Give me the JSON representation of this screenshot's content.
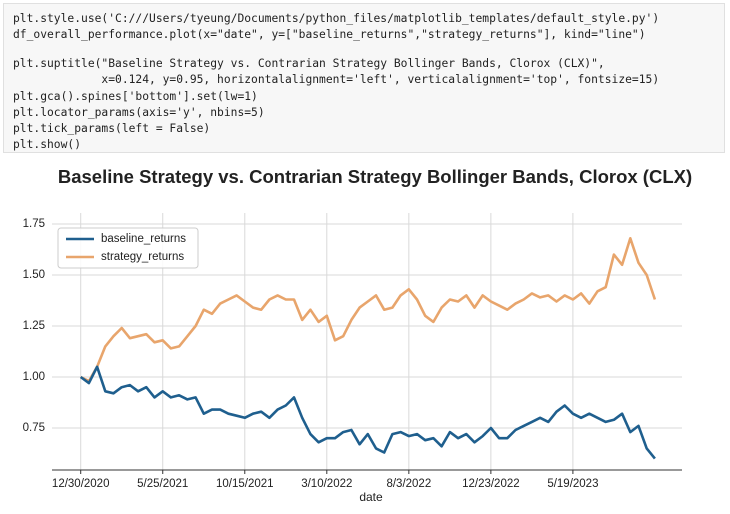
{
  "code": {
    "lines": [
      "plt.style.use('C:///Users/tyeung/Documents/python_files/matplotlib_templates/default_style.py')",
      "df_overall_performance.plot(x=\"date\", y=[\"baseline_returns\",\"strategy_returns\"], kind=\"line\")",
      "plt.suptitle(\"Baseline Strategy vs. Contrarian Strategy Bollinger Bands, Clorox (CLX)\",",
      "             x=0.124, y=0.95, horizontalalignment='left', verticalalignment='top', fontsize=15)",
      "plt.gca().spines['bottom'].set(lw=1)",
      "plt.locator_params(axis='y', nbins=5)",
      "plt.tick_params(left = False)",
      "plt.show()"
    ]
  },
  "chart_data": {
    "type": "line",
    "title": "Baseline Strategy vs. Contrarian Strategy Bollinger Bands, Clorox (CLX)",
    "x_label": "date",
    "x": [
      0,
      10,
      20,
      30,
      40,
      50,
      60,
      70,
      80,
      90,
      100,
      110,
      120,
      130,
      140,
      150,
      160,
      170,
      180,
      190,
      200,
      210,
      220,
      230,
      240,
      250,
      260,
      270,
      280,
      290,
      300,
      310,
      320,
      330,
      340,
      350,
      360,
      370,
      380,
      390,
      400,
      410,
      420,
      430,
      440,
      450,
      460,
      470,
      480,
      490,
      500,
      510,
      520,
      530,
      540,
      550,
      560,
      570,
      580,
      590,
      600,
      610,
      620,
      630,
      640,
      650,
      660,
      670,
      680,
      690,
      700
    ],
    "series": [
      {
        "name": "baseline_returns",
        "color": "#1f5f8e",
        "values": [
          1.0,
          0.97,
          1.05,
          0.93,
          0.92,
          0.95,
          0.96,
          0.93,
          0.95,
          0.9,
          0.93,
          0.9,
          0.91,
          0.89,
          0.9,
          0.82,
          0.84,
          0.84,
          0.82,
          0.81,
          0.8,
          0.82,
          0.83,
          0.8,
          0.84,
          0.86,
          0.9,
          0.8,
          0.72,
          0.68,
          0.7,
          0.7,
          0.73,
          0.74,
          0.67,
          0.72,
          0.65,
          0.63,
          0.72,
          0.73,
          0.71,
          0.72,
          0.69,
          0.7,
          0.66,
          0.73,
          0.7,
          0.72,
          0.68,
          0.71,
          0.75,
          0.7,
          0.7,
          0.74,
          0.76,
          0.78,
          0.8,
          0.78,
          0.83,
          0.86,
          0.82,
          0.8,
          0.82,
          0.8,
          0.78,
          0.79,
          0.82,
          0.73,
          0.76,
          0.65,
          0.6
        ]
      },
      {
        "name": "strategy_returns",
        "color": "#e8a56c",
        "values": [
          1.0,
          0.98,
          1.05,
          1.15,
          1.2,
          1.24,
          1.19,
          1.2,
          1.21,
          1.17,
          1.18,
          1.14,
          1.15,
          1.2,
          1.25,
          1.33,
          1.31,
          1.36,
          1.38,
          1.4,
          1.37,
          1.34,
          1.33,
          1.38,
          1.4,
          1.38,
          1.38,
          1.28,
          1.33,
          1.27,
          1.3,
          1.18,
          1.2,
          1.28,
          1.34,
          1.37,
          1.4,
          1.33,
          1.34,
          1.4,
          1.43,
          1.38,
          1.3,
          1.27,
          1.34,
          1.38,
          1.37,
          1.4,
          1.34,
          1.4,
          1.37,
          1.35,
          1.33,
          1.36,
          1.38,
          1.41,
          1.39,
          1.4,
          1.37,
          1.4,
          1.38,
          1.41,
          1.36,
          1.42,
          1.44,
          1.6,
          1.55,
          1.68,
          1.56,
          1.5,
          1.38
        ]
      }
    ],
    "xlim": [
      -35,
      733
    ],
    "xticks": [
      {
        "value": 0,
        "label": "12/30/2020"
      },
      {
        "value": 100,
        "label": "5/25/2021"
      },
      {
        "value": 200,
        "label": "10/15/2021"
      },
      {
        "value": 300,
        "label": "3/10/2022"
      },
      {
        "value": 400,
        "label": "8/3/2022"
      },
      {
        "value": 500,
        "label": "12/23/2022"
      },
      {
        "value": 600,
        "label": "5/19/2023"
      }
    ],
    "ylim": [
      0.544,
      1.804
    ],
    "yticks": [
      {
        "value": 0.75,
        "label": "0.75"
      },
      {
        "value": 1.0,
        "label": "1.00"
      },
      {
        "value": 1.25,
        "label": "1.25"
      },
      {
        "value": 1.5,
        "label": "1.50"
      },
      {
        "value": 1.75,
        "label": "1.75"
      }
    ],
    "grid": true,
    "legend": "upper left"
  }
}
